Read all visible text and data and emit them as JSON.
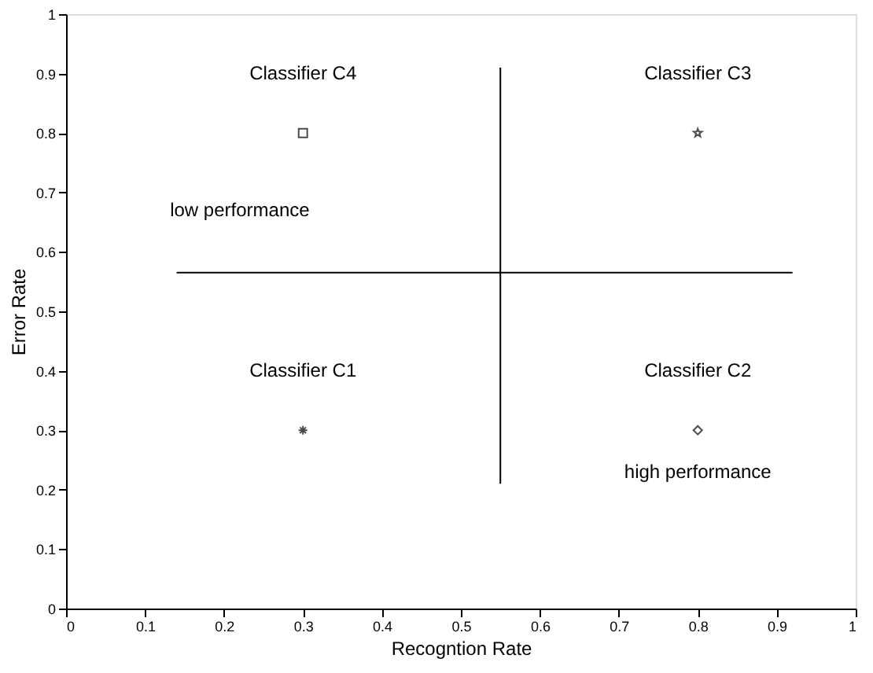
{
  "chart_data": {
    "type": "scatter",
    "xlabel": "Recogntion Rate",
    "ylabel": "Error Rate",
    "xlim": [
      0,
      1
    ],
    "ylim": [
      0,
      1
    ],
    "xticks": [
      0,
      0.1,
      0.2,
      0.3,
      0.4,
      0.5,
      0.6,
      0.7,
      0.8,
      0.9,
      1
    ],
    "yticks": [
      0,
      0.1,
      0.2,
      0.3,
      0.4,
      0.5,
      0.6,
      0.7,
      0.8,
      0.9,
      1
    ],
    "series": [
      {
        "type": "line",
        "x": [
          0.55,
          0.55
        ],
        "values": [
          0.21,
          0.91
        ],
        "color": "#000000"
      },
      {
        "type": "line",
        "x": [
          0.14,
          0.92
        ],
        "values": [
          0.565,
          0.565
        ],
        "color": "#000000"
      },
      {
        "name": "Classifier C4",
        "x": [
          0.3
        ],
        "values": [
          0.8
        ],
        "marker": "square",
        "color": "#000000"
      },
      {
        "name": "Classifier C3",
        "x": [
          0.8
        ],
        "values": [
          0.8
        ],
        "marker": "star",
        "color": "#000000"
      },
      {
        "name": "Classifier C1",
        "x": [
          0.3
        ],
        "values": [
          0.3
        ],
        "marker": "cross",
        "color": "#000000"
      },
      {
        "name": "Classifier C2",
        "x": [
          0.8
        ],
        "values": [
          0.3
        ],
        "marker": "diamond",
        "color": "#000000"
      }
    ],
    "annotations": [
      "low performance",
      "high performance"
    ]
  }
}
